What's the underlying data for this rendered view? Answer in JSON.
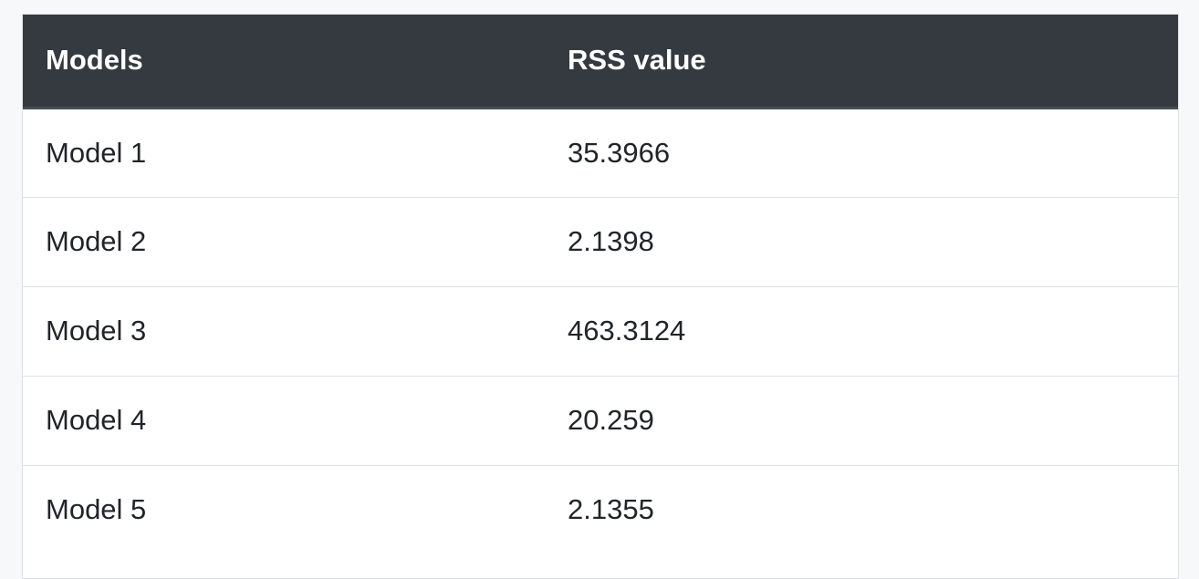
{
  "table": {
    "headers": [
      "Models",
      "RSS value"
    ],
    "rows": [
      [
        "Model 1",
        "35.3966"
      ],
      [
        "Model 2",
        "2.1398"
      ],
      [
        "Model 3",
        "463.3124"
      ],
      [
        "Model 4",
        "20.259"
      ],
      [
        "Model 5",
        "2.1355"
      ]
    ]
  },
  "colors": {
    "header_bg": "#343a40",
    "header_text": "#ffffff",
    "body_text": "#212529",
    "row_border": "#dee2e6",
    "page_bg": "#f7f8fa"
  }
}
